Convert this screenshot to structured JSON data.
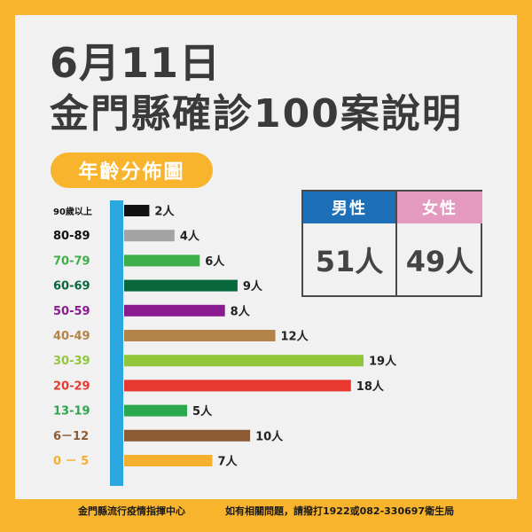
{
  "title_line1": "6月11日",
  "title_line2": "金門縣確診100案說明",
  "section_label": "年齡分佈圖",
  "gender": {
    "male_label": "男性",
    "male_value": "51人",
    "female_label": "女性",
    "female_value": "49人",
    "male_color": "#1d6fb8",
    "female_color": "#e49abf"
  },
  "axis_color": "#2ba7e0",
  "chart_data": {
    "type": "bar",
    "orientation": "horizontal",
    "unit": "人",
    "categories": [
      "90歲以上",
      "80-89",
      "70-79",
      "60-69",
      "50-59",
      "40-49",
      "30-39",
      "20-29",
      "13-19",
      "6－12",
      "0 － 5"
    ],
    "values": [
      2,
      4,
      6,
      9,
      8,
      12,
      19,
      18,
      5,
      10,
      7
    ],
    "data_labels": [
      "2人",
      "4人",
      "6人",
      "9人",
      "8人",
      "12人",
      "19人",
      "18人",
      "5人",
      "10人",
      "7人"
    ],
    "colors": [
      "#111111",
      "#a3a3a3",
      "#3dae48",
      "#08683c",
      "#8a1a8f",
      "#b3834a",
      "#92c73c",
      "#e9382f",
      "#2aa84b",
      "#8d5b33",
      "#f6ae2d"
    ],
    "label_colors": [
      "#111111",
      "#111111",
      "#3dae48",
      "#08683c",
      "#8a1a8f",
      "#b3834a",
      "#92c73c",
      "#e9382f",
      "#2aa84b",
      "#8d5b33",
      "#f6ae2d"
    ],
    "xlim": [
      0,
      19
    ]
  },
  "footer": {
    "left": "金門縣流行疫情指揮中心",
    "right": "如有相關問題，請撥打1922或082-330697衛生局"
  }
}
